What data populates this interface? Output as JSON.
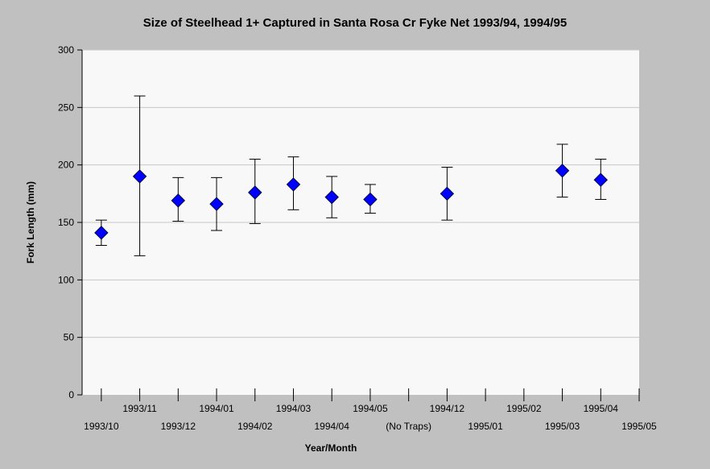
{
  "chart_data": {
    "type": "scatter",
    "title": "Size of Steelhead 1+ Captured in Santa Rosa Cr Fyke Net 1993/94, 1994/95",
    "xlabel": "Year/Month",
    "ylabel": "Fork Length (mm)",
    "ylim": [
      0,
      300
    ],
    "yticks": [
      "0",
      "50",
      "100",
      "150",
      "200",
      "250",
      "300"
    ],
    "grid": "horizontal",
    "categories": [
      "1993/10",
      "1993/11",
      "1993/12",
      "1994/01",
      "1994/02",
      "1994/03",
      "1994/04",
      "1994/05",
      "(No Traps)",
      "1994/12",
      "1995/01",
      "1995/02",
      "1995/03",
      "1995/04",
      "1995/05"
    ],
    "marker_color": "#0000ff",
    "series": [
      {
        "points": [
          {
            "x": "1993/10",
            "mean": 141,
            "low": 130,
            "high": 152
          },
          {
            "x": "1993/11",
            "mean": 190,
            "low": 121,
            "high": 260
          },
          {
            "x": "1993/12",
            "mean": 169,
            "low": 151,
            "high": 189
          },
          {
            "x": "1994/01",
            "mean": 166,
            "low": 143,
            "high": 189
          },
          {
            "x": "1994/02",
            "mean": 176,
            "low": 149,
            "high": 205
          },
          {
            "x": "1994/03",
            "mean": 183,
            "low": 161,
            "high": 207
          },
          {
            "x": "1994/04",
            "mean": 172,
            "low": 154,
            "high": 190
          },
          {
            "x": "1994/05",
            "mean": 170,
            "low": 158,
            "high": 183
          },
          {
            "x": "1994/12",
            "mean": 175,
            "low": 152,
            "high": 198
          },
          {
            "x": "1995/03",
            "mean": 195,
            "low": 172,
            "high": 218
          },
          {
            "x": "1995/04",
            "mean": 187,
            "low": 170,
            "high": 205
          }
        ]
      }
    ]
  }
}
